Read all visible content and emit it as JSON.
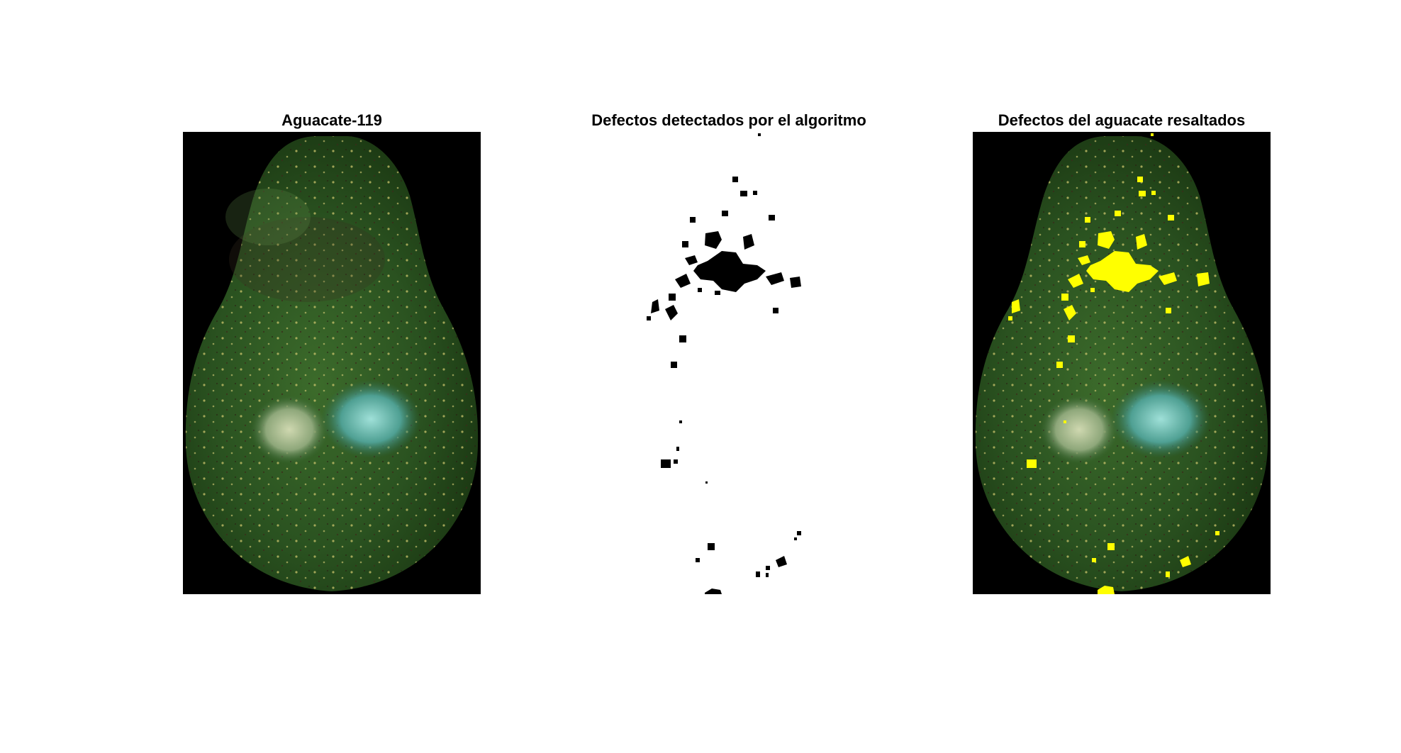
{
  "figure": {
    "panels": [
      {
        "title": "Aguacate-119"
      },
      {
        "title": "Defectos detectados por el algoritmo"
      },
      {
        "title": "Defectos del aguacate resaltados"
      }
    ]
  },
  "colors": {
    "background_black": "#000000",
    "avocado_dark": "#1c3d14",
    "avocado_mid": "#2f5a22",
    "avocado_light": "#4f7a3a",
    "defect_mask": "#000000",
    "defect_highlight": "#ffff00"
  }
}
